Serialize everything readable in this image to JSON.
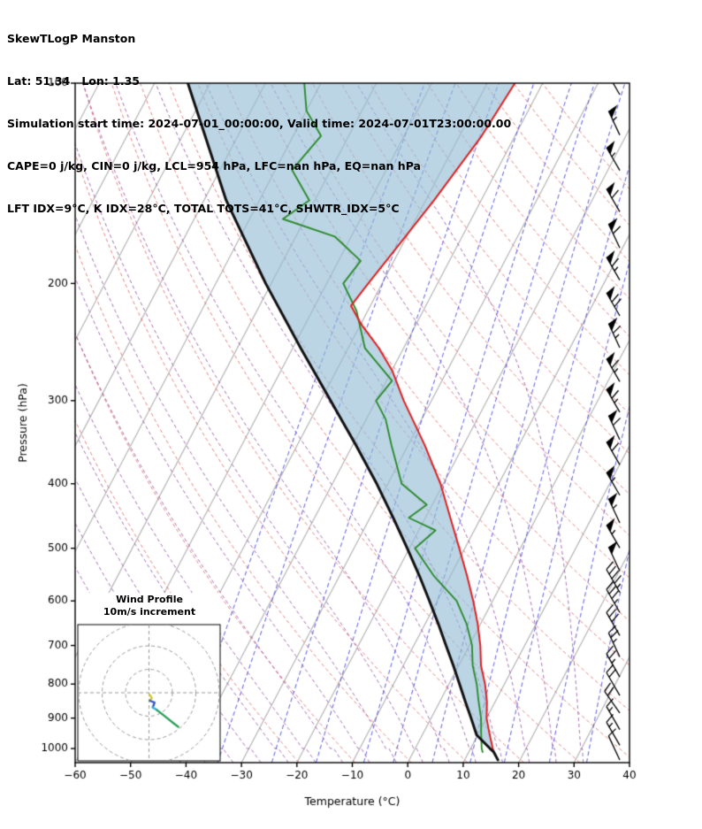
{
  "header": {
    "line1": "SkewTLogP Manston",
    "line2": "Lat: 51.34   Lon: 1.35",
    "line3": "Simulation start time: 2024-07-01_00:00:00, Valid time: 2024-07-01T23:00:00.00",
    "line4": "CAPE=0 j/kg, CIN=0 j/kg, LCL=954 hPa, LFC=nan hPa, EQ=nan hPa",
    "line5": "LFT IDX=9°C, K IDX=28°C, TOTAL TOTS=41°C, SHWTR_IDX=5°C"
  },
  "hodograph": {
    "title_line1": "Wind Profile",
    "title_line2": "10m/s increment",
    "ring_increment_ms": 10,
    "rings_ms": [
      10,
      20,
      30
    ],
    "trace_segments": [
      {
        "color": "#d6c832",
        "points": [
          [
            0.3,
            -0.8
          ],
          [
            1.2,
            -2.2
          ],
          [
            0.4,
            -3.4
          ]
        ]
      },
      {
        "color": "#3858c8",
        "points": [
          [
            0.4,
            -3.4
          ],
          [
            2.4,
            -4.2
          ],
          [
            1.6,
            -6.2
          ]
        ]
      },
      {
        "color": "#38b0d8",
        "points": [
          [
            1.6,
            -6.2
          ],
          [
            3.4,
            -7.4
          ]
        ]
      },
      {
        "color": "#2ca05a",
        "points": [
          [
            3.4,
            -7.4
          ],
          [
            5.5,
            -9.0
          ],
          [
            8.0,
            -11.0
          ],
          [
            10.5,
            -13.0
          ],
          [
            12.5,
            -14.5
          ]
        ]
      }
    ]
  },
  "chart_data": {
    "type": "skewt-logp",
    "title": "SkewTLogP Manston",
    "xlabel": "Temperature (°C)",
    "ylabel": "Pressure (hPa)",
    "x_ticks": [
      -60,
      -50,
      -40,
      -30,
      -20,
      -10,
      0,
      10,
      20,
      30,
      40
    ],
    "x_tick_labels": [
      "−60",
      "−50",
      "−40",
      "−30",
      "−20",
      "−10",
      "0",
      "10",
      "20",
      "30",
      "40"
    ],
    "y_ticks": [
      100,
      200,
      300,
      400,
      500,
      600,
      700,
      800,
      900,
      1000
    ],
    "y_tick_labels": [
      "100",
      "200",
      "300",
      "400",
      "500",
      "600",
      "700",
      "800",
      "900",
      "1000"
    ],
    "pressure_top_hpa": 100,
    "pressure_bottom_hpa": 1050,
    "temp_min_c": -60,
    "temp_max_c": 40,
    "skew_deg_per_decade": 63,
    "isotherms_c": [
      -120,
      -110,
      -100,
      -90,
      -80,
      -70,
      -60,
      -50,
      -40,
      -30,
      -20,
      -10,
      0,
      10,
      20,
      30,
      40
    ],
    "dry_adiabats_theta_k": [
      250,
      260,
      270,
      280,
      290,
      300,
      310,
      320,
      330,
      340,
      350,
      360,
      370,
      380,
      390,
      400,
      410,
      420,
      430,
      440,
      450
    ],
    "moist_adiabats_start_temp_c": [
      -40,
      -35,
      -30,
      -25,
      -20,
      -15,
      -10,
      -5,
      0,
      5,
      10,
      15,
      20,
      25,
      30
    ],
    "mixing_ratios_g_kg": [
      0.1,
      0.2,
      0.5,
      1,
      2,
      3,
      5,
      8,
      12,
      20,
      30
    ],
    "temperature_profile": {
      "pressure": [
        1012,
        1000,
        950,
        900,
        850,
        800,
        750,
        700,
        650,
        600,
        550,
        500,
        450,
        400,
        350,
        300,
        270,
        250,
        230,
        216,
        200,
        180,
        150,
        120,
        100
      ],
      "temp_c": [
        14.5,
        14.0,
        12.0,
        10.0,
        8.5,
        6.5,
        4.0,
        2.0,
        -0.5,
        -3.5,
        -7.0,
        -11.0,
        -15.5,
        -20.5,
        -27.0,
        -35.0,
        -40.0,
        -44.5,
        -50.0,
        -53.5,
        -52.5,
        -51.0,
        -48.5,
        -46.0,
        -45.0
      ]
    },
    "dewpoint_profile": {
      "pressure": [
        1012,
        1000,
        950,
        900,
        850,
        800,
        750,
        700,
        650,
        600,
        550,
        500,
        470,
        450,
        430,
        400,
        350,
        320,
        300,
        280,
        250,
        220,
        200,
        185,
        170,
        160,
        150,
        135,
        120,
        110,
        100
      ],
      "temp_c": [
        12.5,
        12.0,
        10.5,
        9.0,
        7.0,
        5.0,
        2.5,
        0.5,
        -2.5,
        -6.5,
        -13.0,
        -19.0,
        -17.0,
        -23.0,
        -21.0,
        -27.5,
        -33.0,
        -36.5,
        -40.0,
        -39.0,
        -47.0,
        -52.0,
        -57.0,
        -56.0,
        -63.0,
        -74.0,
        -71.0,
        -77.0,
        -75.0,
        -80.0,
        -83.0
      ]
    },
    "parcel_profile": {
      "pressure": [
        1040,
        1012,
        1000,
        954,
        900,
        850,
        800,
        750,
        700,
        650,
        600,
        550,
        500,
        450,
        400,
        350,
        300,
        250,
        200,
        150,
        100
      ],
      "temp_c": [
        16.0,
        14.5,
        13.5,
        9.8,
        7.2,
        4.6,
        1.9,
        -1.0,
        -4.2,
        -7.6,
        -11.4,
        -15.6,
        -20.4,
        -25.8,
        -32.0,
        -39.4,
        -48.2,
        -58.6,
        -71.0,
        -86.0,
        -104.0
      ]
    },
    "wind_barbs": {
      "pressure": [
        1000,
        950,
        900,
        850,
        800,
        750,
        700,
        650,
        600,
        560,
        520,
        480,
        440,
        400,
        360,
        330,
        300,
        270,
        240,
        215,
        190,
        170,
        150,
        130,
        115,
        100
      ],
      "speed_kt": [
        12,
        15,
        18,
        20,
        22,
        25,
        28,
        32,
        38,
        45,
        52,
        55,
        55,
        58,
        60,
        62,
        65,
        65,
        68,
        70,
        65,
        62,
        60,
        58,
        55,
        52
      ],
      "dir_deg": [
        335,
        330,
        330,
        325,
        330,
        330,
        335,
        330,
        330,
        330,
        335,
        330,
        335,
        330,
        330,
        335,
        330,
        330,
        335,
        330,
        330,
        335,
        330,
        330,
        335,
        330
      ]
    },
    "colors": {
      "isotherm": "#b5b5b5",
      "dry_adiabat": "rgba(225,110,110,0.85)",
      "moist_adiabat": "rgba(150,85,165,0.85)",
      "mixing_ratio": "rgba(75,75,215,0.8)",
      "temperature": "#e02020",
      "dewpoint": "#2e8b2e",
      "parcel": "#111111",
      "shade": "rgba(150,190,215,0.65)",
      "barb": "#000000",
      "hodo_grid": "#999999"
    }
  }
}
